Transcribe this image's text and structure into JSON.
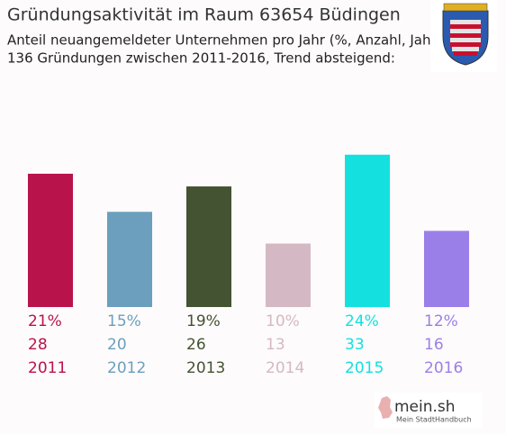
{
  "chart_data": {
    "type": "bar",
    "title": "Gründungsaktivität im Raum 63654 Büdingen",
    "subtitle": "Anteil neuangemeldeter Unternehmen pro Jahr (%, Anzahl, Jahr)",
    "subtitle2": "136 Gründungen zwischen 2011-2016, Trend absteigend:",
    "categories": [
      "2011",
      "2012",
      "2013",
      "2014",
      "2015",
      "2016"
    ],
    "values": [
      21,
      15,
      19,
      10,
      24,
      12
    ],
    "value_labels": [
      "21%",
      "15%",
      "19%",
      "10%",
      "24%",
      "12%"
    ],
    "counts": [
      28,
      20,
      26,
      13,
      33,
      16
    ],
    "colors": [
      "#b9134b",
      "#6b9fbd",
      "#445331",
      "#d4b9c4",
      "#14e0e0",
      "#9b7fe8"
    ]
  },
  "branding": {
    "logo": "mein.sh",
    "tagline": "Mein StadtHandbuch"
  }
}
